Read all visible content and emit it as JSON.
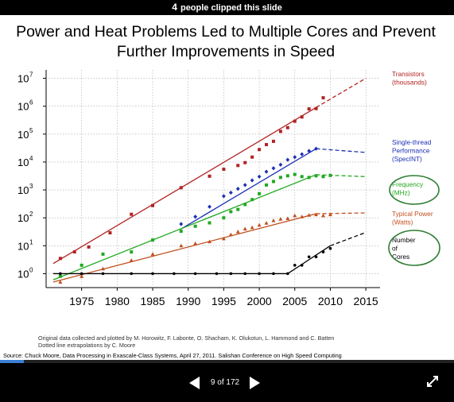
{
  "header": {
    "count": "4",
    "clipped_text": "people clipped this slide"
  },
  "slide": {
    "title": "Power and Heat Problems Led to Multiple Cores and Prevent Further Improvements in Speed"
  },
  "chart_data": {
    "type": "scatter",
    "title": "Power and Heat Problems Led to Multiple Cores and Prevent Further Improvements in Speed",
    "xlabel": "",
    "ylabel": "",
    "x_ticks": [
      "1975",
      "1980",
      "1985",
      "1990",
      "1995",
      "2000",
      "2005",
      "2010",
      "2015"
    ],
    "y_ticks": [
      "10",
      "10",
      "10",
      "10",
      "10",
      "10",
      "10",
      "10"
    ],
    "y_exponents": [
      "0",
      "1",
      "2",
      "3",
      "4",
      "5",
      "6",
      "7"
    ],
    "xlim": [
      1970,
      2017
    ],
    "ylim_log10": [
      -0.5,
      7.3
    ],
    "y_scale": "log",
    "grid": true,
    "legend_placement": "right",
    "series": [
      {
        "name": "Transistors (thousands)",
        "label_lines": [
          "Transistors",
          "(thousands)"
        ],
        "color": "#b22222",
        "marker": "square",
        "x": [
          1972,
          1974,
          1976,
          1979,
          1982,
          1985,
          1989,
          1993,
          1995,
          1997,
          1998,
          1999,
          2000,
          2001,
          2002,
          2003,
          2004,
          2005,
          2006,
          2007,
          2008,
          2009
        ],
        "y": [
          3.5,
          6,
          9,
          29,
          134,
          275,
          1200,
          3100,
          5500,
          7500,
          9500,
          15000,
          28000,
          42000,
          55000,
          125000,
          170000,
          290000,
          410000,
          800000,
          820000,
          2000000
        ],
        "trend_x": [
          1971,
          2008
        ],
        "trend_y": [
          2.3,
          900000
        ],
        "extrap_x": [
          2008,
          2015
        ],
        "extrap_y": [
          900000,
          10000000
        ]
      },
      {
        "name": "Single-thread Performance (SpecINT)",
        "label_lines": [
          "Single-thread",
          "Performance",
          "(SpecINT)"
        ],
        "color": "#1c2fb5",
        "marker": "diamond",
        "x": [
          1989,
          1991,
          1993,
          1995,
          1996,
          1997,
          1998,
          1999,
          2000,
          2001,
          2002,
          2003,
          2004,
          2005,
          2006,
          2007,
          2008
        ],
        "y": [
          60,
          110,
          250,
          600,
          800,
          1100,
          1500,
          2200,
          3000,
          4500,
          6000,
          8000,
          12000,
          15000,
          19000,
          25000,
          30000
        ],
        "trend_x": [
          1989,
          2008
        ],
        "trend_y": [
          40,
          30000
        ],
        "extrap_x": [
          2008,
          2015
        ],
        "extrap_y": [
          30000,
          22000
        ]
      },
      {
        "name": "Frequency (MHz)",
        "label_lines": [
          "Frequency",
          "(MHz)"
        ],
        "color": "#21a821",
        "marker": "square",
        "x": [
          1972,
          1975,
          1978,
          1982,
          1985,
          1989,
          1991,
          1993,
          1995,
          1996,
          1997,
          1998,
          1999,
          2000,
          2001,
          2002,
          2003,
          2004,
          2005,
          2006,
          2007,
          2008,
          2009,
          2010
        ],
        "y": [
          0.8,
          2,
          5,
          6,
          16,
          33,
          50,
          66,
          100,
          166,
          200,
          300,
          450,
          733,
          1500,
          2000,
          2800,
          3200,
          3600,
          3000,
          2800,
          3200,
          3000,
          3300
        ],
        "trend_x": [
          1971,
          2008
        ],
        "trend_y": [
          0.6,
          3500
        ],
        "extrap_x": [
          2008,
          2015
        ],
        "extrap_y": [
          3500,
          3000
        ]
      },
      {
        "name": "Typical Power (Watts)",
        "label_lines": [
          "Typical Power",
          "(Watts)"
        ],
        "color": "#c0501f",
        "marker": "triangle",
        "x": [
          1972,
          1975,
          1978,
          1982,
          1985,
          1989,
          1991,
          1993,
          1995,
          1996,
          1997,
          1998,
          1999,
          2000,
          2001,
          2002,
          2003,
          2004,
          2005,
          2006,
          2007,
          2008,
          2009,
          2010
        ],
        "y": [
          0.5,
          0.8,
          1.5,
          3,
          5,
          10,
          12,
          14,
          18,
          25,
          32,
          40,
          45,
          55,
          65,
          80,
          90,
          95,
          120,
          110,
          125,
          130,
          120,
          130
        ],
        "trend_x": [
          1971,
          2008
        ],
        "trend_y": [
          0.5,
          140
        ],
        "extrap_x": [
          2008,
          2015
        ],
        "extrap_y": [
          140,
          150
        ]
      },
      {
        "name": "Number of Cores",
        "label_lines": [
          "Number",
          "of",
          "Cores"
        ],
        "color": "#000000",
        "marker": "circle",
        "x": [
          1972,
          1975,
          1978,
          1982,
          1985,
          1988,
          1991,
          1994,
          1996,
          1998,
          2000,
          2002,
          2004,
          2005,
          2006,
          2007,
          2008,
          2009,
          2010
        ],
        "y": [
          1,
          1,
          1,
          1,
          1,
          1,
          1,
          1,
          1,
          1,
          1,
          1,
          1,
          2,
          2,
          4,
          4,
          6,
          8
        ],
        "trend_x": [
          1971,
          2004,
          2010
        ],
        "trend_y": [
          1,
          1,
          10
        ],
        "extrap_x": [
          2010,
          2015
        ],
        "extrap_y": [
          10,
          30
        ]
      }
    ],
    "annotations": [
      "Original data collected and plotted by M. Horowitz, F. Labonte, O. Shacham, K. Olukotun, L. Hammond and C. Batten",
      "Dotted line extrapolations by C. Moore"
    ]
  },
  "source": "Source: Chuck Moore, Data Processing in Exascale-Class Systems, April 27, 2011. Salishan Conference on High Speed Computing",
  "nav": {
    "counter": "9 of 172",
    "current": 9,
    "total": 172
  },
  "icons": {
    "prev": "prev-arrow-icon",
    "next": "next-arrow-icon",
    "expand": "expand-icon"
  },
  "colors": {
    "accent": "#3b7fd6",
    "bar": "#000000",
    "green_circle": "#2e7d32"
  }
}
